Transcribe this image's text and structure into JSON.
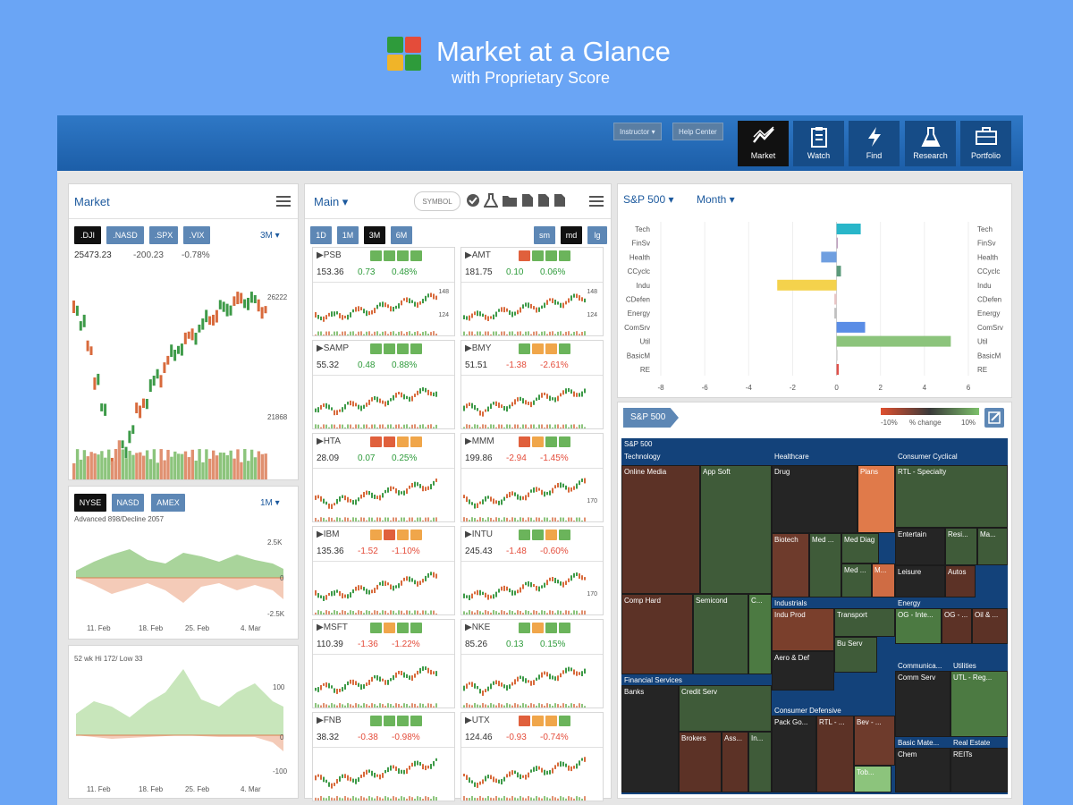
{
  "header": {
    "title": "Market at a Glance",
    "subtitle": "with Proprietary Score"
  },
  "topbar": {
    "instructor": "Instructor ▾",
    "help": "Help Center",
    "nav": [
      {
        "label": "Market",
        "icon": "trend-icon",
        "active": true
      },
      {
        "label": "Watch",
        "icon": "clipboard-icon",
        "active": false
      },
      {
        "label": "Find",
        "icon": "lightning-icon",
        "active": false
      },
      {
        "label": "Research",
        "icon": "flask-icon",
        "active": false
      },
      {
        "label": "Portfolio",
        "icon": "briefcase-icon",
        "active": false
      }
    ]
  },
  "market": {
    "title": "Market",
    "tabs": [
      ".DJI",
      ".NASD",
      ".SPX",
      ".VIX"
    ],
    "range": "3M ▾",
    "value": "25473.23",
    "change": "-200.23",
    "pct": "-0.78%",
    "hi": "26222",
    "lo": "21868"
  },
  "breadth": {
    "tabs": [
      "NYSE",
      "NASD",
      "AMEX"
    ],
    "range": "1M ▾",
    "caption": "Advanced 898/Decline 2057",
    "top": "2.5K",
    "mid": "0",
    "bot": "-2.5K",
    "dates": [
      "11. Feb",
      "18. Feb",
      "25. Feb",
      "4. Mar"
    ]
  },
  "highlow": {
    "caption": "52 wk Hi 172/ Low 33",
    "top": "100",
    "mid": "0",
    "bot": "-100",
    "dates": [
      "11. Feb",
      "18. Feb",
      "25. Feb",
      "4. Mar"
    ]
  },
  "main": {
    "title": "Main ▾",
    "symbol_placeholder": "SYMBOL",
    "periods": [
      "1D",
      "1M",
      "3M",
      "6M"
    ],
    "sizes": [
      "sm",
      "md",
      "lg"
    ],
    "cards": [
      {
        "sym": "▶PSB",
        "price": "153.36",
        "chg": "0.73",
        "pct": "0.48%",
        "up": true,
        "hi": "148",
        "lo": "124",
        "score": [
          "g",
          "g",
          "g",
          "g"
        ]
      },
      {
        "sym": "▶AMT",
        "price": "181.75",
        "chg": "0.10",
        "pct": "0.06%",
        "up": true,
        "hi": "148",
        "lo": "124",
        "score": [
          "r",
          "g",
          "g",
          "g"
        ]
      },
      {
        "sym": "▶SAMP",
        "price": "55.32",
        "chg": "0.48",
        "pct": "0.88%",
        "up": true,
        "hi": "",
        "lo": "",
        "score": [
          "g",
          "g",
          "g",
          "g"
        ]
      },
      {
        "sym": "▶BMY",
        "price": "51.51",
        "chg": "-1.38",
        "pct": "-2.61%",
        "up": false,
        "hi": "",
        "lo": "",
        "score": [
          "g",
          "o",
          "o",
          "g"
        ]
      },
      {
        "sym": "▶HTA",
        "price": "28.09",
        "chg": "0.07",
        "pct": "0.25%",
        "up": true,
        "hi": "",
        "lo": "",
        "score": [
          "r",
          "r",
          "o",
          "o"
        ]
      },
      {
        "sym": "▶MMM",
        "price": "199.86",
        "chg": "-2.94",
        "pct": "-1.45%",
        "up": false,
        "hi": "",
        "lo": "170",
        "score": [
          "r",
          "o",
          "g",
          "g"
        ]
      },
      {
        "sym": "▶IBM",
        "price": "135.36",
        "chg": "-1.52",
        "pct": "-1.10%",
        "up": false,
        "hi": "",
        "lo": "",
        "score": [
          "o",
          "r",
          "o",
          "o"
        ]
      },
      {
        "sym": "▶INTU",
        "price": "245.43",
        "chg": "-1.48",
        "pct": "-0.60%",
        "up": false,
        "hi": "",
        "lo": "170",
        "score": [
          "g",
          "g",
          "o",
          "g"
        ]
      },
      {
        "sym": "▶MSFT",
        "price": "110.39",
        "chg": "-1.36",
        "pct": "-1.22%",
        "up": false,
        "hi": "",
        "lo": "",
        "score": [
          "g",
          "o",
          "g",
          "g"
        ]
      },
      {
        "sym": "▶NKE",
        "price": "85.26",
        "chg": "0.13",
        "pct": "0.15%",
        "up": true,
        "hi": "",
        "lo": "",
        "score": [
          "g",
          "o",
          "g",
          "g"
        ]
      },
      {
        "sym": "▶FNB",
        "price": "38.32",
        "chg": "-0.38",
        "pct": "-0.98%",
        "up": false,
        "hi": "",
        "lo": "",
        "score": [
          "g",
          "g",
          "g",
          "g"
        ]
      },
      {
        "sym": "▶UTX",
        "price": "124.46",
        "chg": "-0.93",
        "pct": "-0.74%",
        "up": false,
        "hi": "",
        "lo": "",
        "score": [
          "r",
          "o",
          "o",
          "g"
        ]
      }
    ]
  },
  "sectors": {
    "index": "S&P 500 ▾",
    "period": "Month ▾",
    "labels": [
      "Tech",
      "FinSv",
      "Health",
      "CCyclc",
      "Indu",
      "CDefen",
      "Energy",
      "ComSrv",
      "Util",
      "BasicM",
      "RE"
    ],
    "values": [
      1.1,
      0,
      -0.7,
      0.2,
      -2.7,
      -0.1,
      -0.1,
      1.3,
      5.2,
      0,
      0.1
    ],
    "colors": [
      "#29b6c9",
      "#c0a0c0",
      "#6f9fe0",
      "#5b9a7b",
      "#f4d24c",
      "#e8c4c4",
      "#c0c0c0",
      "#5a8de6",
      "#8cc47c",
      "#ddd",
      "#e0514a"
    ],
    "ticks": [
      "-8",
      "-6",
      "-4",
      "-2",
      "0",
      "2",
      "4",
      "6"
    ]
  },
  "treemap": {
    "tag": "S&P 500",
    "legend": [
      "-10%",
      "% change",
      "10%"
    ],
    "root": "S&P 500",
    "sectors": [
      {
        "name": "Technology",
        "cells": [
          {
            "t": "Online Media",
            "c": "#5c3226"
          },
          {
            "t": "App Soft",
            "c": "#3f5b39"
          }
        ]
      },
      {
        "name": "Healthcare",
        "cells": [
          {
            "t": "Drug",
            "c": "#252525"
          },
          {
            "t": "Plans",
            "c": "#e07a4a"
          },
          {
            "t": "Biotech",
            "c": "#6e3b2c"
          },
          {
            "t": "Med ...",
            "c": "#3f5b39"
          },
          {
            "t": "Med Diag",
            "c": "#3f5b39"
          },
          {
            "t": "Med ...",
            "c": "#3f5b39"
          },
          {
            "t": "M...",
            "c": "#cf6c44"
          }
        ]
      },
      {
        "name": "Consumer Cyclical",
        "cells": [
          {
            "t": "RTL - Specialty",
            "c": "#3f5b39"
          },
          {
            "t": "Entertain",
            "c": "#252525"
          },
          {
            "t": "Resi...",
            "c": "#3f5b39"
          },
          {
            "t": "Ma...",
            "c": "#3f5b39"
          },
          {
            "t": "Leisure",
            "c": "#252525"
          },
          {
            "t": "Autos",
            "c": "#5c3226"
          }
        ]
      },
      {
        "name": "",
        "cells": [
          {
            "t": "Comp Hard",
            "c": "#5c3226"
          },
          {
            "t": "Semicond",
            "c": "#3f5b39"
          },
          {
            "t": "C...",
            "c": "#4c7a42"
          }
        ]
      },
      {
        "name": "Industrials",
        "cells": [
          {
            "t": "Indu Prod",
            "c": "#7a3f2c"
          },
          {
            "t": "Transport",
            "c": "#3f5b39"
          },
          {
            "t": "Bu Serv",
            "c": "#3f5b39"
          },
          {
            "t": "Aero & Def",
            "c": "#252525"
          }
        ]
      },
      {
        "name": "Energy",
        "cells": [
          {
            "t": "OG - Inte...",
            "c": "#4c7a42"
          },
          {
            "t": "OG - ...",
            "c": "#5c3226"
          },
          {
            "t": "Oil & ...",
            "c": "#5c3226"
          }
        ]
      },
      {
        "name": "Financial Services",
        "cells": [
          {
            "t": "Banks",
            "c": "#252525"
          },
          {
            "t": "Credit Serv",
            "c": "#3f5b39"
          },
          {
            "t": "Brokers",
            "c": "#5c3226"
          },
          {
            "t": "Ass...",
            "c": "#5c3226"
          },
          {
            "t": "In...",
            "c": "#3f5b39"
          }
        ]
      },
      {
        "name": "Consumer Defensive",
        "cells": [
          {
            "t": "Pack Go...",
            "c": "#252525"
          },
          {
            "t": "RTL - ...",
            "c": "#5c3226"
          },
          {
            "t": "Bev - ...",
            "c": "#6e3b2c"
          },
          {
            "t": "Tob...",
            "c": "#8cc47c"
          }
        ]
      },
      {
        "name": "Communica...",
        "cells": [
          {
            "t": "Comm Serv",
            "c": "#252525"
          }
        ]
      },
      {
        "name": "Utilities",
        "cells": [
          {
            "t": "UTL - Reg...",
            "c": "#4c7a42"
          }
        ]
      },
      {
        "name": "Basic Mate...",
        "cells": [
          {
            "t": "Chem",
            "c": "#252525"
          }
        ]
      },
      {
        "name": "Real Estate",
        "cells": [
          {
            "t": "REITs",
            "c": "#252525"
          }
        ]
      }
    ]
  }
}
